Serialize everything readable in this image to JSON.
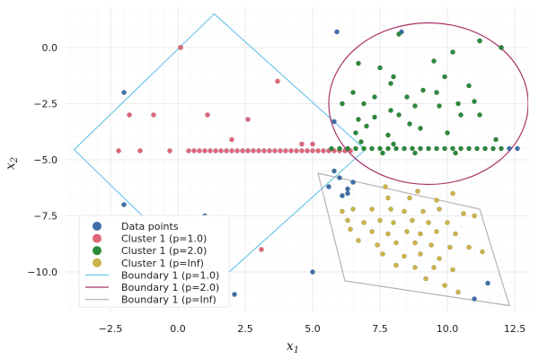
{
  "chart_data": {
    "type": "scatter",
    "xlabel_main": "x",
    "xlabel_sub": "1",
    "ylabel_main": "x",
    "ylabel_sub": "2",
    "xlim": [
      -4.2,
      13.0
    ],
    "ylim": [
      -11.8,
      1.8
    ],
    "xticks": [
      -2.5,
      0.0,
      2.5,
      5.0,
      7.5,
      10.0,
      12.5
    ],
    "xtick_labels": [
      "−2.5",
      "0.0",
      "2.5",
      "5.0",
      "7.5",
      "10.0",
      "12.5"
    ],
    "yticks": [
      0.0,
      -2.5,
      -5.0,
      -7.5,
      -10.0
    ],
    "ytick_labels": [
      "0.0",
      "−2.5",
      "−5.0",
      "−7.5",
      "−10.0"
    ],
    "grid": true,
    "legend_position": "bottom-left",
    "colors": {
      "data": "#3f6fa8",
      "p1": "#e0667a",
      "p2": "#2a8a3a",
      "pinf": "#cbb44a",
      "b1": "#6ec8e6",
      "b2": "#a8336a",
      "binf": "#b3b3b3"
    },
    "series": [
      {
        "name": "Data points",
        "kind": "scatter",
        "color_key": "data",
        "points": [
          [
            0.1,
            0.0
          ],
          [
            -2.0,
            -2.0
          ],
          [
            5.9,
            0.7
          ],
          [
            8.3,
            0.7
          ],
          [
            11.2,
            0.3
          ],
          [
            12.0,
            0.0
          ],
          [
            5.8,
            -3.3
          ],
          [
            5.8,
            -5.5
          ],
          [
            6.0,
            -5.8
          ],
          [
            5.6,
            -6.2
          ],
          [
            6.1,
            -6.6
          ],
          [
            6.3,
            -6.3
          ],
          [
            6.5,
            -6.0
          ],
          [
            6.3,
            -6.5
          ],
          [
            12.3,
            -4.5
          ],
          [
            12.6,
            -4.5
          ],
          [
            -2.0,
            -7.0
          ],
          [
            1.0,
            -7.5
          ],
          [
            5.0,
            -10.0
          ],
          [
            2.1,
            -11.0
          ],
          [
            11.5,
            -10.5
          ],
          [
            11.0,
            -11.2
          ]
        ]
      },
      {
        "name": "Cluster 1 (p=1.0)",
        "kind": "scatter",
        "color_key": "p1",
        "points": [
          [
            0.1,
            0.0
          ],
          [
            3.7,
            -1.5
          ],
          [
            -1.8,
            -3.0
          ],
          [
            -0.9,
            -3.0
          ],
          [
            1.1,
            -3.0
          ],
          [
            2.6,
            -3.2
          ],
          [
            4.6,
            -4.3
          ],
          [
            5.0,
            -4.3
          ],
          [
            2.0,
            -4.1
          ],
          [
            -2.2,
            -4.6
          ],
          [
            -1.4,
            -4.6
          ],
          [
            -0.3,
            -4.6
          ],
          [
            0.4,
            -4.6
          ],
          [
            0.6,
            -4.6
          ],
          [
            0.8,
            -4.6
          ],
          [
            1.0,
            -4.6
          ],
          [
            1.2,
            -4.6
          ],
          [
            1.4,
            -4.6
          ],
          [
            1.6,
            -4.6
          ],
          [
            1.8,
            -4.6
          ],
          [
            2.0,
            -4.6
          ],
          [
            2.2,
            -4.6
          ],
          [
            2.4,
            -4.6
          ],
          [
            2.6,
            -4.6
          ],
          [
            2.8,
            -4.6
          ],
          [
            3.0,
            -4.6
          ],
          [
            3.2,
            -4.6
          ],
          [
            3.4,
            -4.6
          ],
          [
            3.6,
            -4.6
          ],
          [
            3.8,
            -4.6
          ],
          [
            4.0,
            -4.6
          ],
          [
            4.2,
            -4.6
          ],
          [
            4.4,
            -4.6
          ],
          [
            4.6,
            -4.6
          ],
          [
            4.8,
            -4.6
          ],
          [
            5.0,
            -4.6
          ],
          [
            5.2,
            -4.6
          ],
          [
            5.4,
            -4.6
          ],
          [
            5.6,
            -4.6
          ],
          [
            5.8,
            -4.6
          ],
          [
            6.0,
            -4.6
          ],
          [
            6.2,
            -4.6
          ],
          [
            6.4,
            -4.6
          ],
          [
            3.1,
            -9.0
          ]
        ]
      },
      {
        "name": "Cluster 1 (p=2.0)",
        "kind": "scatter",
        "color_key": "p2",
        "points": [
          [
            8.2,
            0.6
          ],
          [
            11.2,
            0.3
          ],
          [
            12.0,
            0.0
          ],
          [
            7.5,
            -0.9
          ],
          [
            9.5,
            -0.6
          ],
          [
            10.2,
            -0.2
          ],
          [
            6.7,
            -0.7
          ],
          [
            8.0,
            -1.3
          ],
          [
            9.9,
            -1.3
          ],
          [
            7.9,
            -1.6
          ],
          [
            10.8,
            -1.7
          ],
          [
            9.1,
            -1.9
          ],
          [
            6.5,
            -2.0
          ],
          [
            9.6,
            -2.0
          ],
          [
            7.3,
            -2.2
          ],
          [
            8.5,
            -2.2
          ],
          [
            6.1,
            -2.5
          ],
          [
            6.9,
            -2.5
          ],
          [
            10.4,
            -2.5
          ],
          [
            11.0,
            -2.4
          ],
          [
            7.9,
            -2.8
          ],
          [
            8.8,
            -2.6
          ],
          [
            9.7,
            -2.6
          ],
          [
            6.7,
            -3.2
          ],
          [
            7.3,
            -3.1
          ],
          [
            8.2,
            -3.0
          ],
          [
            10.5,
            -3.0
          ],
          [
            11.2,
            -3.0
          ],
          [
            7.0,
            -3.5
          ],
          [
            8.6,
            -3.4
          ],
          [
            9.0,
            -3.6
          ],
          [
            6.6,
            -3.8
          ],
          [
            7.8,
            -3.9
          ],
          [
            10.0,
            -3.8
          ],
          [
            6.8,
            -4.2
          ],
          [
            11.8,
            -4.1
          ],
          [
            8.0,
            -4.3
          ],
          [
            5.7,
            -4.5
          ],
          [
            6.0,
            -4.5
          ],
          [
            6.3,
            -4.5
          ],
          [
            6.6,
            -4.5
          ],
          [
            6.9,
            -4.5
          ],
          [
            7.2,
            -4.5
          ],
          [
            7.5,
            -4.5
          ],
          [
            7.8,
            -4.5
          ],
          [
            8.1,
            -4.5
          ],
          [
            8.4,
            -4.5
          ],
          [
            8.7,
            -4.5
          ],
          [
            9.0,
            -4.5
          ],
          [
            9.3,
            -4.5
          ],
          [
            9.6,
            -4.5
          ],
          [
            9.9,
            -4.5
          ],
          [
            10.2,
            -4.5
          ],
          [
            10.5,
            -4.5
          ],
          [
            10.8,
            -4.5
          ],
          [
            11.1,
            -4.5
          ],
          [
            11.4,
            -4.5
          ],
          [
            11.7,
            -4.5
          ],
          [
            12.0,
            -4.5
          ],
          [
            7.6,
            -4.7
          ],
          [
            8.8,
            -4.7
          ],
          [
            10.3,
            -4.7
          ]
        ]
      },
      {
        "name": "Cluster 1 (p=Inf)",
        "kind": "scatter",
        "color_key": "pinf",
        "points": [
          [
            7.7,
            -6.2
          ],
          [
            8.9,
            -6.4
          ],
          [
            10.2,
            -6.5
          ],
          [
            7.8,
            -6.7
          ],
          [
            8.6,
            -6.7
          ],
          [
            9.6,
            -6.8
          ],
          [
            6.1,
            -7.3
          ],
          [
            6.5,
            -7.2
          ],
          [
            7.2,
            -7.2
          ],
          [
            7.9,
            -7.2
          ],
          [
            8.4,
            -7.3
          ],
          [
            9.1,
            -7.3
          ],
          [
            9.7,
            -7.2
          ],
          [
            10.6,
            -7.4
          ],
          [
            11.0,
            -7.5
          ],
          [
            6.3,
            -7.7
          ],
          [
            6.9,
            -7.8
          ],
          [
            7.5,
            -7.7
          ],
          [
            8.0,
            -7.8
          ],
          [
            8.7,
            -7.7
          ],
          [
            9.3,
            -7.8
          ],
          [
            10.0,
            -7.8
          ],
          [
            6.4,
            -8.1
          ],
          [
            7.2,
            -8.2
          ],
          [
            7.8,
            -8.3
          ],
          [
            8.5,
            -8.2
          ],
          [
            9.0,
            -8.3
          ],
          [
            9.6,
            -8.2
          ],
          [
            10.3,
            -8.3
          ],
          [
            6.7,
            -8.6
          ],
          [
            7.4,
            -8.8
          ],
          [
            8.1,
            -8.7
          ],
          [
            8.8,
            -8.7
          ],
          [
            9.4,
            -8.8
          ],
          [
            10.1,
            -8.9
          ],
          [
            10.8,
            -8.9
          ],
          [
            7.6,
            -9.2
          ],
          [
            8.4,
            -9.3
          ],
          [
            9.0,
            -9.2
          ],
          [
            9.7,
            -9.4
          ],
          [
            11.3,
            -9.1
          ],
          [
            8.1,
            -9.7
          ],
          [
            8.8,
            -9.8
          ],
          [
            9.5,
            -9.8
          ],
          [
            10.2,
            -9.9
          ],
          [
            9.2,
            -10.3
          ],
          [
            9.9,
            -10.6
          ],
          [
            10.4,
            -10.9
          ]
        ]
      },
      {
        "name": "Boundary 1 (p=1.0)",
        "kind": "line",
        "color_key": "b1",
        "points": [
          [
            1.35,
            1.5
          ],
          [
            6.95,
            -4.55
          ],
          [
            1.35,
            -10.6
          ],
          [
            -3.85,
            -4.55
          ],
          [
            1.35,
            1.5
          ]
        ]
      },
      {
        "name": "Boundary 1 (p=2.0)",
        "kind": "ellipse",
        "color_key": "b2",
        "center": [
          9.3,
          -2.5
        ],
        "radius": [
          3.7,
          3.6
        ]
      },
      {
        "name": "Boundary 1 (p=Inf)",
        "kind": "line",
        "color_key": "binf",
        "points": [
          [
            5.2,
            -5.6
          ],
          [
            11.2,
            -7.2
          ],
          [
            12.3,
            -11.5
          ],
          [
            6.2,
            -10.4
          ],
          [
            5.2,
            -5.6
          ]
        ]
      }
    ]
  }
}
